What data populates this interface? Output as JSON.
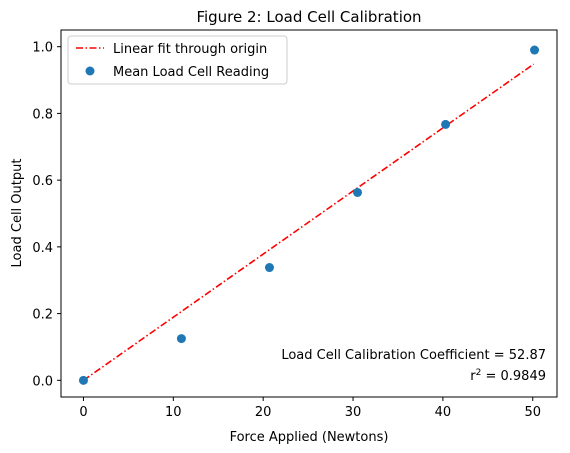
{
  "chart_data": {
    "type": "scatter",
    "title": "Figure 2: Load Cell Calibration",
    "xlabel": "Force Applied (Newtons)",
    "ylabel": "Load Cell Output",
    "xlim": [
      -2.5,
      52.7
    ],
    "ylim": [
      -0.05,
      1.05
    ],
    "xticks": [
      0,
      10,
      20,
      30,
      40,
      50
    ],
    "xtick_labels": [
      "0",
      "10",
      "20",
      "30",
      "40",
      "50"
    ],
    "yticks": [
      0.0,
      0.2,
      0.4,
      0.6,
      0.8,
      1.0
    ],
    "ytick_labels": [
      "0.0",
      "0.2",
      "0.4",
      "0.6",
      "0.8",
      "1.0"
    ],
    "grid": false,
    "legend_position": "top-left",
    "series": [
      {
        "name": "Linear fit through origin",
        "kind": "line",
        "style": "dash-dot",
        "color": "#ff0000",
        "x": [
          0,
          50.1
        ],
        "y": [
          0,
          0.9476
        ]
      },
      {
        "name": "Mean Load Cell Reading",
        "kind": "scatter",
        "color": "#1f77b4",
        "x": [
          0,
          10.9,
          20.7,
          30.5,
          40.3,
          50.2
        ],
        "y": [
          0.0,
          0.125,
          0.338,
          0.563,
          0.767,
          0.99
        ]
      }
    ],
    "annotations": [
      "Load Cell Calibration Coefficient = 52.87"
    ],
    "r2": {
      "prefix": "r",
      "sup": "2",
      "suffix": " = 0.9849"
    }
  }
}
